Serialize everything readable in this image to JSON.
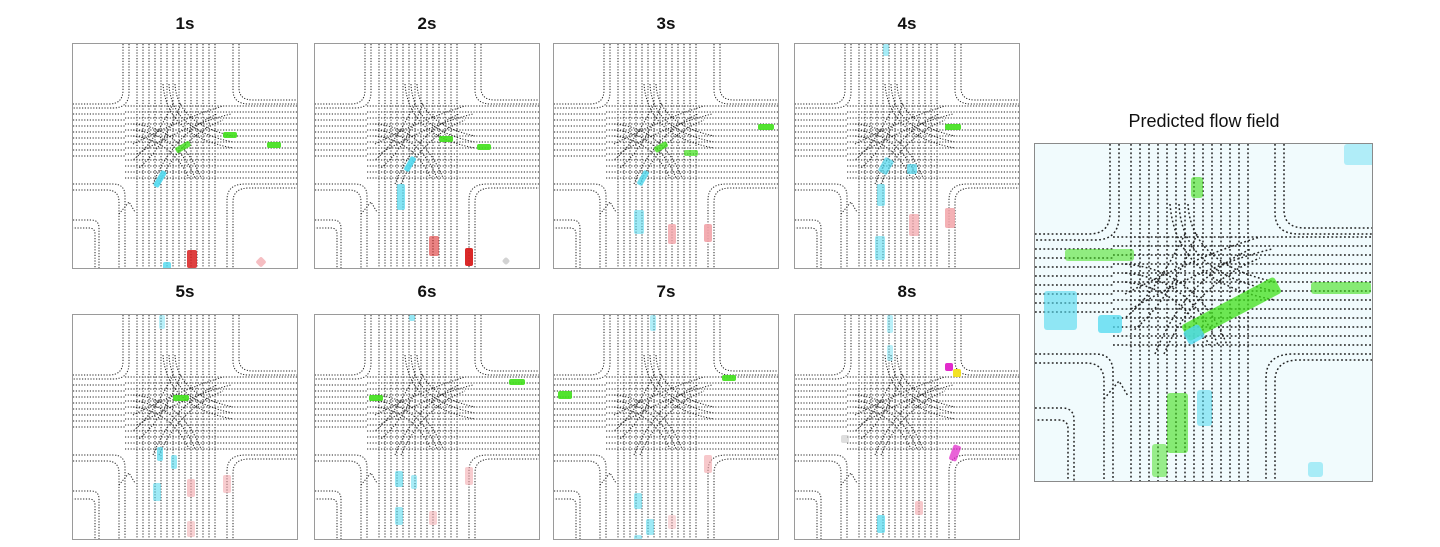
{
  "panels": [
    {
      "label": "1s"
    },
    {
      "label": "2s"
    },
    {
      "label": "3s"
    },
    {
      "label": "4s"
    },
    {
      "label": "5s"
    },
    {
      "label": "6s"
    },
    {
      "label": "7s"
    },
    {
      "label": "8s"
    }
  ],
  "flow": {
    "title": "Predicted flow field"
  },
  "colors": {
    "green": "#3fe019",
    "cyan": "#4fd9ef",
    "red": "#d81e1e",
    "pink": "#f2a3a8",
    "magenta": "#e020c8",
    "yellow": "#f2e21a",
    "gray": "#c8c8c8",
    "lane": "#222222",
    "flow_bg": "#f1fbfd"
  }
}
